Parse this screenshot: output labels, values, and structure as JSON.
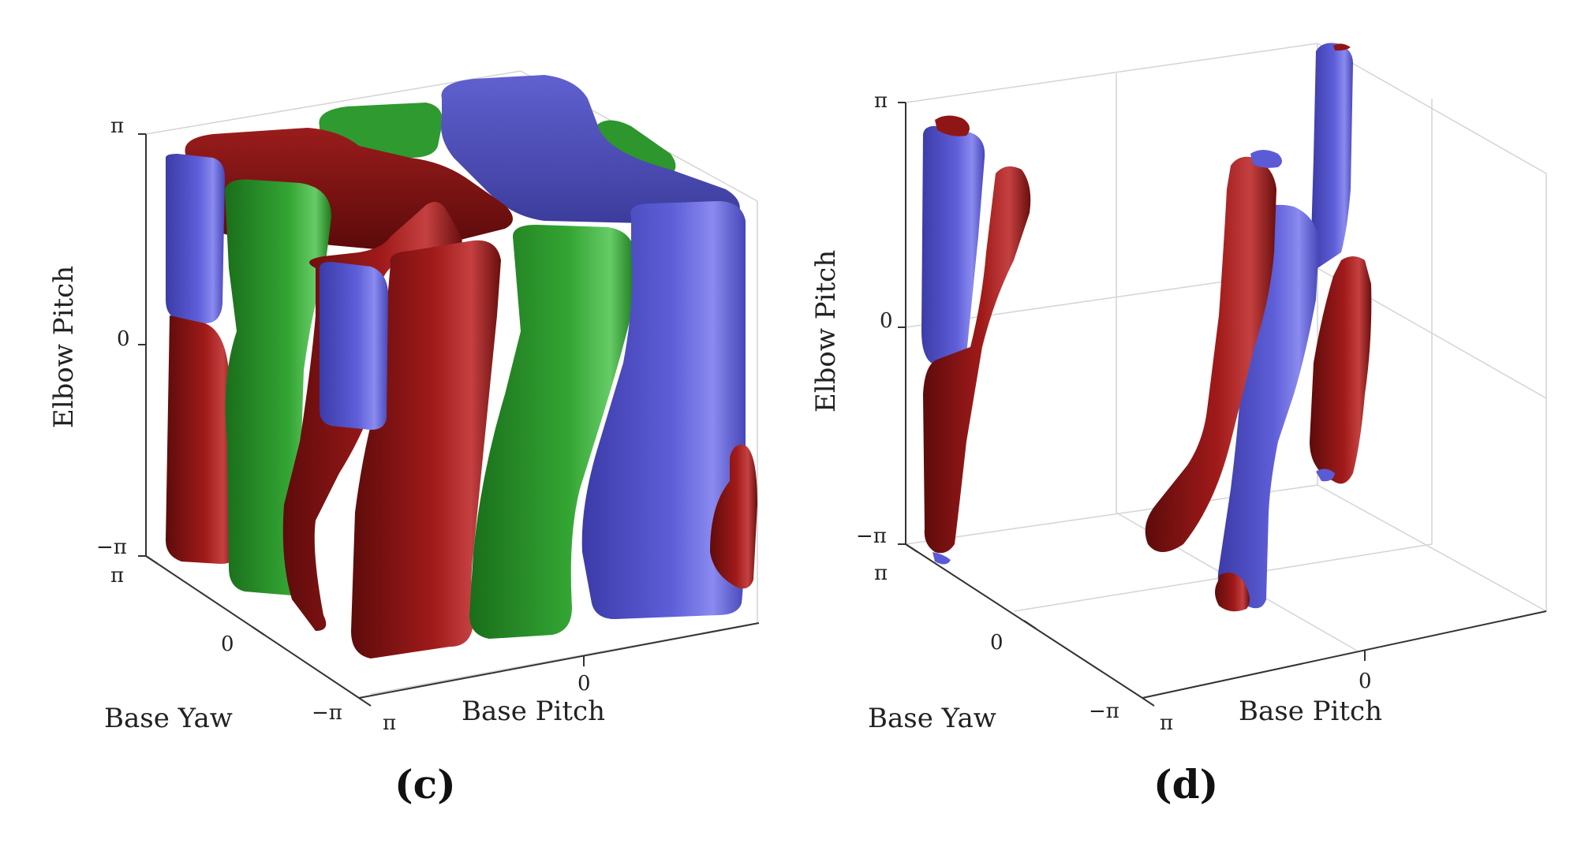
{
  "panels": [
    {
      "id": "c",
      "caption": "(c)",
      "xlabel": "Base Pitch",
      "ylabel": "Base Yaw",
      "zlabel": "Elbow Pitch",
      "z_ticks": [
        "π",
        "0",
        "−π"
      ],
      "yaw_ticks": [
        "π",
        "0",
        "−π"
      ],
      "pitch_ticks": [
        "π",
        "0"
      ],
      "region_colors": {
        "red": "#8c1515",
        "green": "#2e9a2e",
        "blue": "#5b5bd6"
      }
    },
    {
      "id": "d",
      "caption": "(d)",
      "xlabel": "Base Pitch",
      "ylabel": "Base Yaw",
      "zlabel": "Elbow Pitch",
      "z_ticks": [
        "π",
        "0",
        "−π"
      ],
      "yaw_ticks": [
        "π",
        "0",
        "−π"
      ],
      "pitch_ticks": [
        "π",
        "0"
      ],
      "region_colors": {
        "red": "#8c1515",
        "blue": "#6464dc"
      }
    }
  ]
}
